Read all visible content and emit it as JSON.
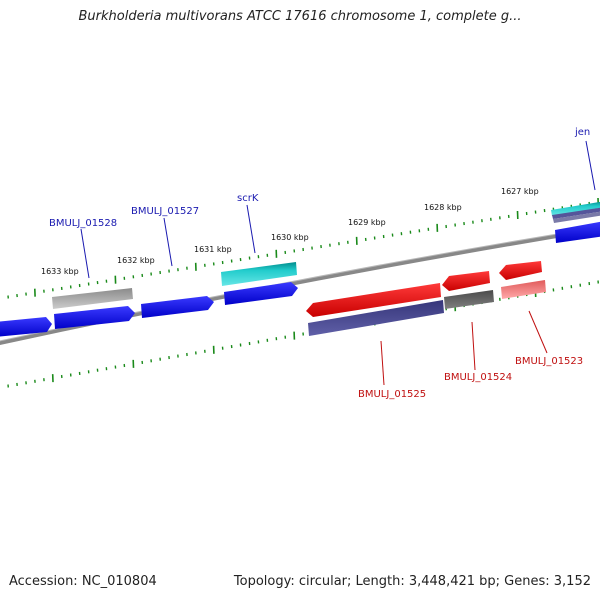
{
  "title": "Burkholderia multivorans ATCC 17616 chromosome 1, complete g...",
  "footer": {
    "accession": "Accession: NC_010804",
    "topology": "Topology: circular; Length: 3,448,421 bp; Genes: 3,152"
  },
  "kbp_labels": [
    "1633 kbp",
    "1632 kbp",
    "1631 kbp",
    "1630 kbp",
    "1629 kbp",
    "1628 kbp",
    "1627 kbp"
  ],
  "gene_labels": {
    "bmulj_01528": "BMULJ_01528",
    "bmulj_01527": "BMULJ_01527",
    "scrk": "scrK",
    "jen": "jen",
    "bmulj_01525": "BMULJ_01525",
    "bmulj_01524": "BMULJ_01524",
    "bmulj_01523": "BMULJ_01523"
  },
  "colors": {
    "forward_cds": "#0a0aee",
    "reverse_cds": "#ee1111",
    "cyan_feature": "#22cccc",
    "navy_feature": "#4a4a90",
    "gray_feature": "#a8a8a8",
    "tick": "#1a8a1a",
    "backbone": "#808080"
  }
}
